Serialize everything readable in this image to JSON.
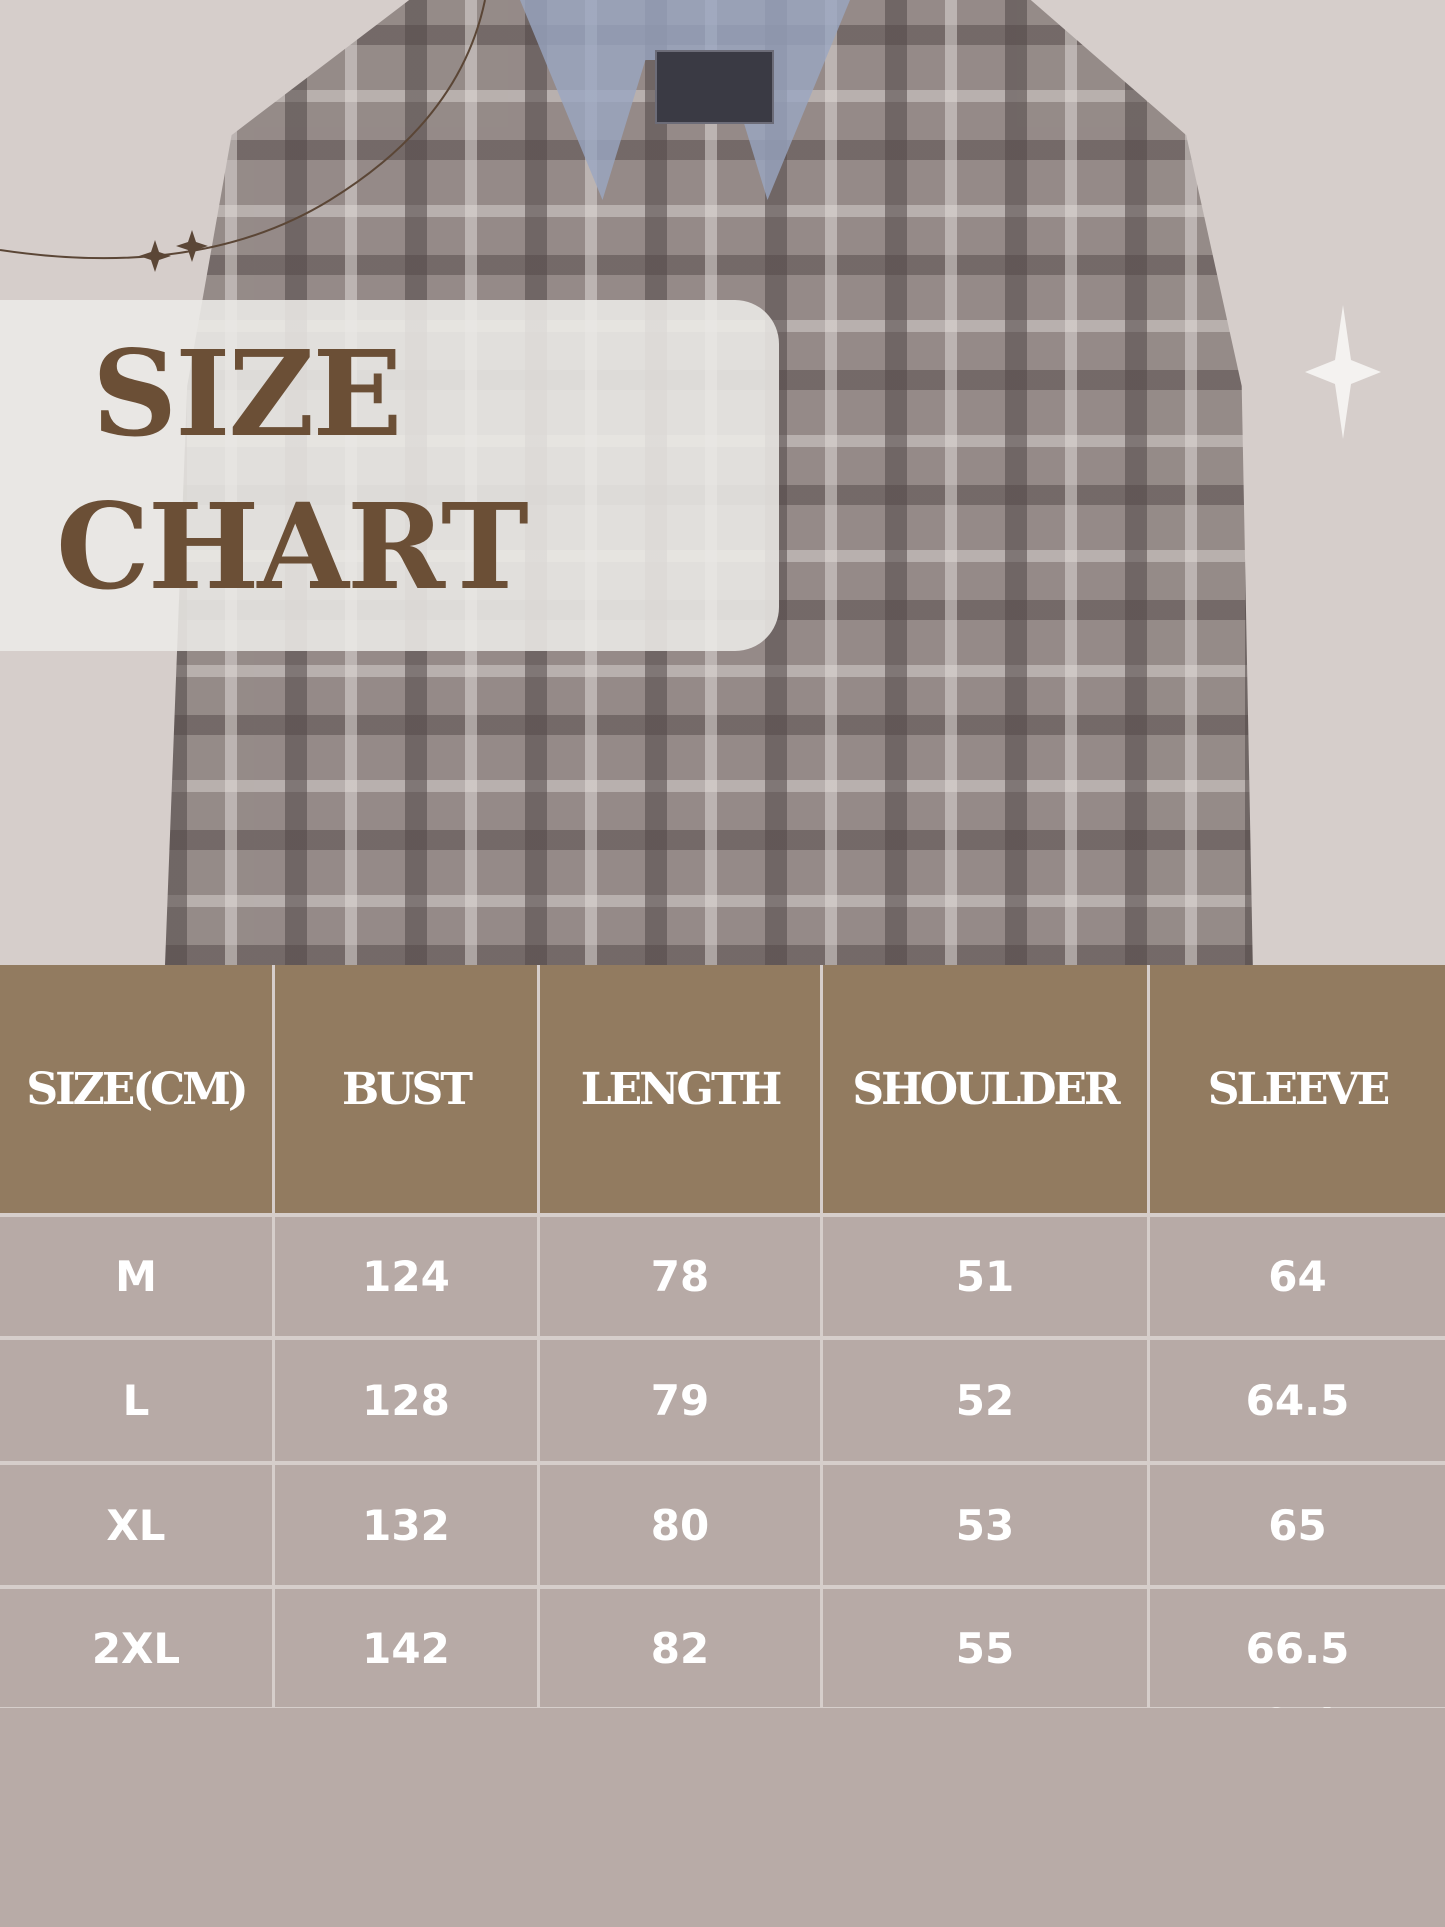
{
  "title": {
    "line1": "SIZE",
    "line2": "CHART"
  },
  "colors": {
    "title": "#6b4f36",
    "header_bg": "#927b60",
    "row_bg": "#b7aaa6",
    "background": "#d6cecb"
  },
  "table": {
    "headers": [
      "SIZE(CM)",
      "BUST",
      "LENGTH",
      "SHOULDER",
      "SLEEVE"
    ],
    "rows": [
      [
        "M",
        "124",
        "78",
        "51",
        "64"
      ],
      [
        "L",
        "128",
        "79",
        "52",
        "64.5"
      ],
      [
        "XL",
        "132",
        "80",
        "53",
        "65"
      ],
      [
        "2XL",
        "142",
        "82",
        "55",
        "66.5"
      ]
    ]
  }
}
